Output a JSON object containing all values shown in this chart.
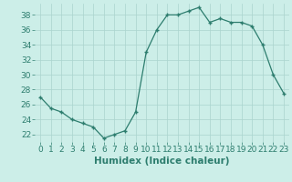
{
  "x": [
    0,
    1,
    2,
    3,
    4,
    5,
    6,
    7,
    8,
    9,
    10,
    11,
    12,
    13,
    14,
    15,
    16,
    17,
    18,
    19,
    20,
    21,
    22,
    23
  ],
  "y": [
    27,
    25.5,
    25,
    24,
    23.5,
    23,
    21.5,
    22,
    22.5,
    25,
    33,
    36,
    38,
    38,
    38.5,
    39,
    37,
    37.5,
    37,
    37,
    36.5,
    34,
    30,
    27.5
  ],
  "line_color": "#2d7d6e",
  "marker_color": "#2d7d6e",
  "bg_color": "#cceee8",
  "grid_color": "#aad4ce",
  "xlabel": "Humidex (Indice chaleur)",
  "xlim": [
    -0.5,
    23.5
  ],
  "ylim": [
    21,
    39.5
  ],
  "yticks": [
    22,
    24,
    26,
    28,
    30,
    32,
    34,
    36,
    38
  ],
  "xticks": [
    0,
    1,
    2,
    3,
    4,
    5,
    6,
    7,
    8,
    9,
    10,
    11,
    12,
    13,
    14,
    15,
    16,
    17,
    18,
    19,
    20,
    21,
    22,
    23
  ],
  "tick_label_fontsize": 6.5,
  "xlabel_fontsize": 7.5
}
